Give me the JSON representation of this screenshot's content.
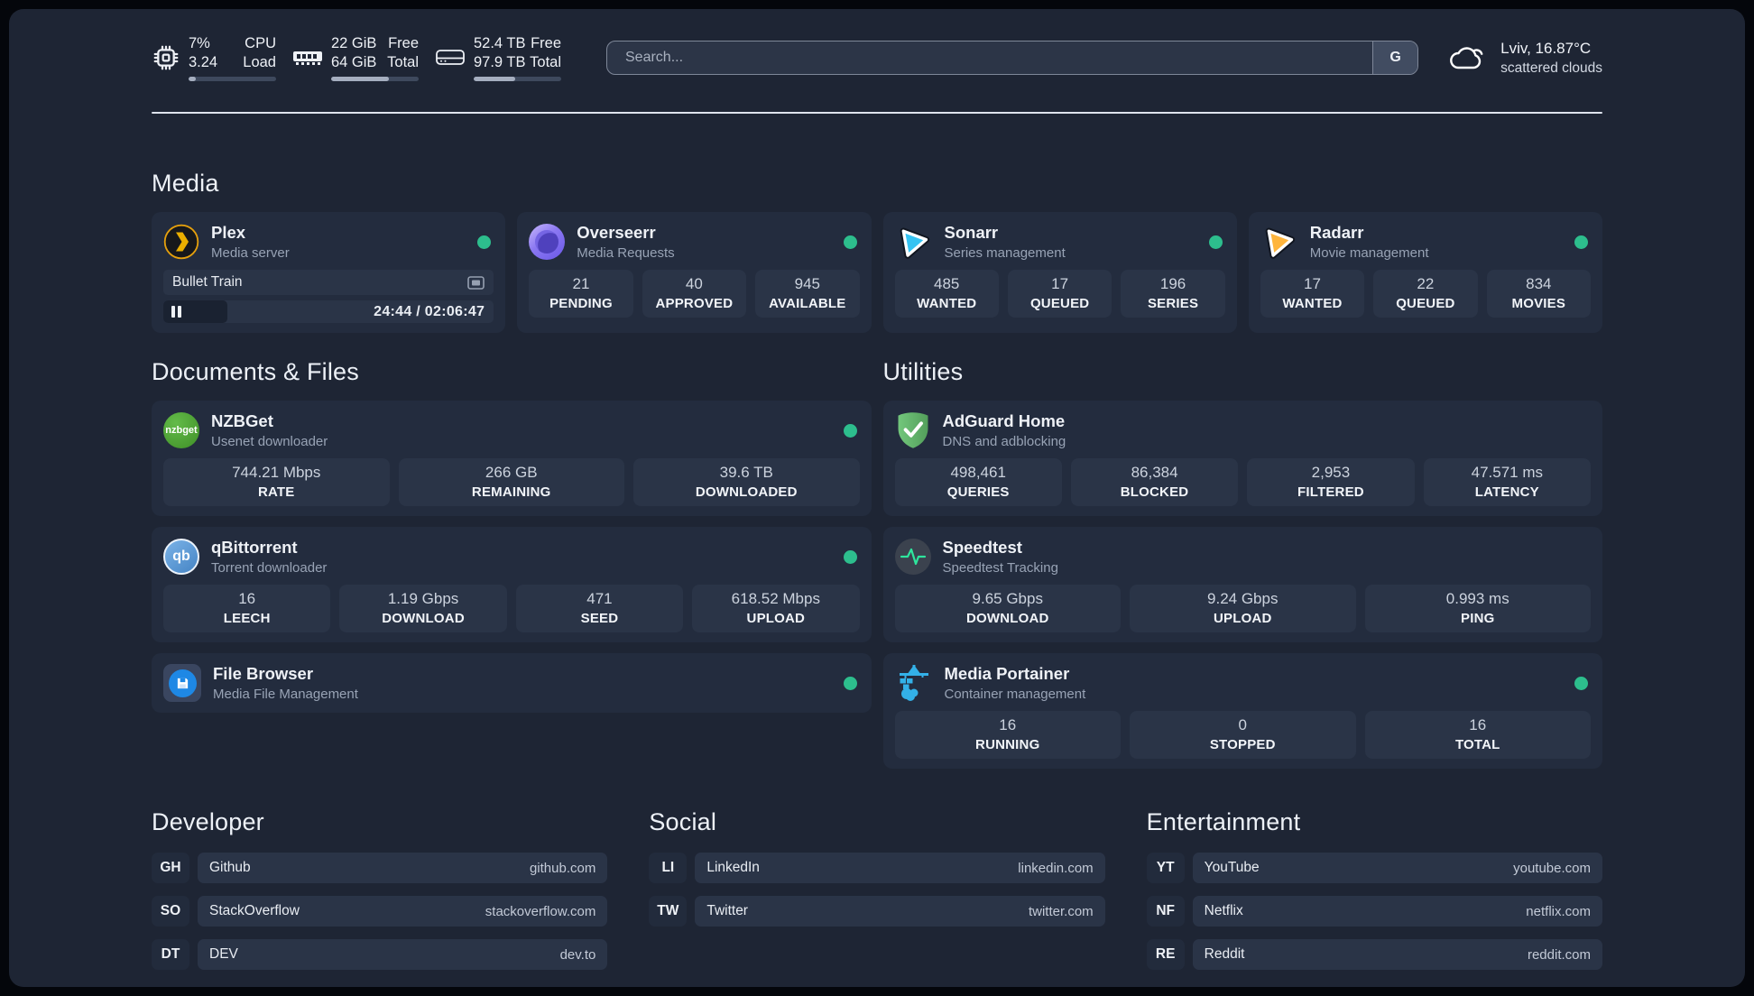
{
  "topbar": {
    "cpu": {
      "value_primary": "7%",
      "value_secondary": "3.24",
      "label_primary": "CPU",
      "label_secondary": "Load",
      "progress_pct": 8
    },
    "memory": {
      "value_primary": "22 GiB",
      "value_secondary": "64 GiB",
      "label_primary": "Free",
      "label_secondary": "Total",
      "progress_pct": 66
    },
    "disk": {
      "value_primary": "52.4 TB",
      "value_secondary": "97.9 TB",
      "label_primary": "Free",
      "label_secondary": "Total",
      "progress_pct": 47
    },
    "search": {
      "placeholder": "Search...",
      "engine_button": "G"
    },
    "weather": {
      "location": "Lviv, 16.87°C",
      "condition": "scattered clouds"
    }
  },
  "sections": {
    "media": {
      "title": "Media",
      "apps": [
        {
          "name": "Plex",
          "description": "Media server",
          "online": true,
          "player": {
            "title": "Bullet Train",
            "time": "24:44 / 02:06:47",
            "progress_pct": 19.5,
            "state": "paused"
          }
        },
        {
          "name": "Overseerr",
          "description": "Media Requests",
          "online": true,
          "stats": [
            {
              "value": "21",
              "label": "PENDING"
            },
            {
              "value": "40",
              "label": "APPROVED"
            },
            {
              "value": "945",
              "label": "AVAILABLE"
            }
          ]
        },
        {
          "name": "Sonarr",
          "description": "Series management",
          "online": true,
          "stats": [
            {
              "value": "485",
              "label": "WANTED"
            },
            {
              "value": "17",
              "label": "QUEUED"
            },
            {
              "value": "196",
              "label": "SERIES"
            }
          ]
        },
        {
          "name": "Radarr",
          "description": "Movie management",
          "online": true,
          "stats": [
            {
              "value": "17",
              "label": "WANTED"
            },
            {
              "value": "22",
              "label": "QUEUED"
            },
            {
              "value": "834",
              "label": "MOVIES"
            }
          ]
        }
      ]
    },
    "documents": {
      "title": "Documents & Files",
      "apps": [
        {
          "name": "NZBGet",
          "description": "Usenet downloader",
          "online": true,
          "stats": [
            {
              "value": "744.21 Mbps",
              "label": "RATE"
            },
            {
              "value": "266 GB",
              "label": "REMAINING"
            },
            {
              "value": "39.6 TB",
              "label": "DOWNLOADED"
            }
          ]
        },
        {
          "name": "qBittorrent",
          "description": "Torrent downloader",
          "online": true,
          "stats": [
            {
              "value": "16",
              "label": "LEECH"
            },
            {
              "value": "1.19 Gbps",
              "label": "DOWNLOAD"
            },
            {
              "value": "471",
              "label": "SEED"
            },
            {
              "value": "618.52 Mbps",
              "label": "UPLOAD"
            }
          ]
        },
        {
          "name": "File Browser",
          "description": "Media File Management",
          "online": true,
          "stats": []
        }
      ]
    },
    "utilities": {
      "title": "Utilities",
      "apps": [
        {
          "name": "AdGuard Home",
          "description": "DNS and adblocking",
          "stats": [
            {
              "value": "498,461",
              "label": "QUERIES"
            },
            {
              "value": "86,384",
              "label": "BLOCKED"
            },
            {
              "value": "2,953",
              "label": "FILTERED"
            },
            {
              "value": "47.571 ms",
              "label": "LATENCY"
            }
          ]
        },
        {
          "name": "Speedtest",
          "description": "Speedtest Tracking",
          "stats": [
            {
              "value": "9.65 Gbps",
              "label": "DOWNLOAD"
            },
            {
              "value": "9.24 Gbps",
              "label": "UPLOAD"
            },
            {
              "value": "0.993 ms",
              "label": "PING"
            }
          ]
        },
        {
          "name": "Media Portainer",
          "description": "Container management",
          "online": true,
          "stats": [
            {
              "value": "16",
              "label": "RUNNING"
            },
            {
              "value": "0",
              "label": "STOPPED"
            },
            {
              "value": "16",
              "label": "TOTAL"
            }
          ]
        }
      ]
    },
    "developer": {
      "title": "Developer",
      "links": [
        {
          "abbr": "GH",
          "name": "Github",
          "url": "github.com"
        },
        {
          "abbr": "SO",
          "name": "StackOverflow",
          "url": "stackoverflow.com"
        },
        {
          "abbr": "DT",
          "name": "DEV",
          "url": "dev.to"
        }
      ]
    },
    "social": {
      "title": "Social",
      "links": [
        {
          "abbr": "LI",
          "name": "LinkedIn",
          "url": "linkedin.com"
        },
        {
          "abbr": "TW",
          "name": "Twitter",
          "url": "twitter.com"
        }
      ]
    },
    "entertainment": {
      "title": "Entertainment",
      "links": [
        {
          "abbr": "YT",
          "name": "YouTube",
          "url": "youtube.com"
        },
        {
          "abbr": "NF",
          "name": "Netflix",
          "url": "netflix.com"
        },
        {
          "abbr": "RE",
          "name": "Reddit",
          "url": "reddit.com"
        }
      ]
    }
  },
  "colors": {
    "status_online": "#2dbe8d",
    "plex": "#e5a00d",
    "overseerr": "#7c6cf0",
    "sonarr": "#35c3f2",
    "radarr": "#ffb53c",
    "nzbget": "#4aa532",
    "qbittorrent": "#4f94d4",
    "filebrowser": "#1e88e5",
    "adguard": "#68bc71",
    "speedtest_pulse": "#2ee59d",
    "portainer": "#33b1e8"
  }
}
